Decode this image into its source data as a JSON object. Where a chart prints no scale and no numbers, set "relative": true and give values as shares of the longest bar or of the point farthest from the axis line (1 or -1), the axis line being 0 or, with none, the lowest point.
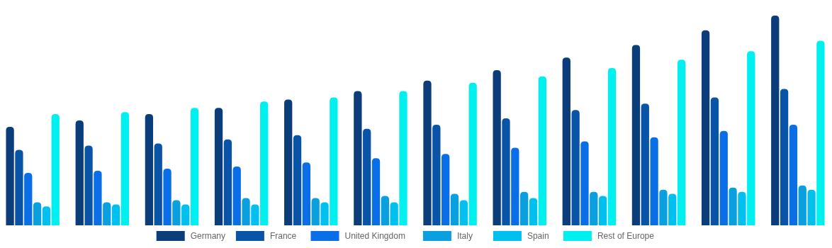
{
  "chart_data": {
    "type": "bar",
    "relative": true,
    "legend": "bottom",
    "categories": [
      null,
      null,
      null,
      null,
      null,
      null,
      null,
      null,
      null,
      null,
      null,
      null
    ],
    "series": [
      {
        "name": "Germany",
        "color": "#0a3d7a",
        "values": [
          0.47,
          0.5,
          0.53,
          0.56,
          0.6,
          0.64,
          0.69,
          0.74,
          0.8,
          0.86,
          0.93,
          1
        ]
      },
      {
        "name": "France",
        "color": "#0a54a8",
        "values": [
          0.36,
          0.38,
          0.39,
          0.41,
          0.43,
          0.46,
          0.48,
          0.51,
          0.55,
          0.58,
          0.61,
          0.65
        ]
      },
      {
        "name": "United Kingdom",
        "color": "#0a6ee6",
        "values": [
          0.25,
          0.26,
          0.27,
          0.28,
          0.3,
          0.32,
          0.34,
          0.37,
          0.4,
          0.42,
          0.45,
          0.48
        ]
      },
      {
        "name": "Italy",
        "color": "#0aa0e0",
        "values": [
          0.11,
          0.11,
          0.12,
          0.13,
          0.13,
          0.14,
          0.15,
          0.16,
          0.16,
          0.17,
          0.18,
          0.19
        ]
      },
      {
        "name": "Spain",
        "color": "#00c0f0",
        "values": [
          0.09,
          0.1,
          0.1,
          0.1,
          0.11,
          0.11,
          0.12,
          0.13,
          0.14,
          0.15,
          0.16,
          0.17
        ]
      },
      {
        "name": "Rest of Europe",
        "color": "#00f0f0",
        "values": [
          0.53,
          0.54,
          0.56,
          0.59,
          0.61,
          0.64,
          0.68,
          0.71,
          0.75,
          0.79,
          0.83,
          0.88
        ]
      }
    ]
  }
}
